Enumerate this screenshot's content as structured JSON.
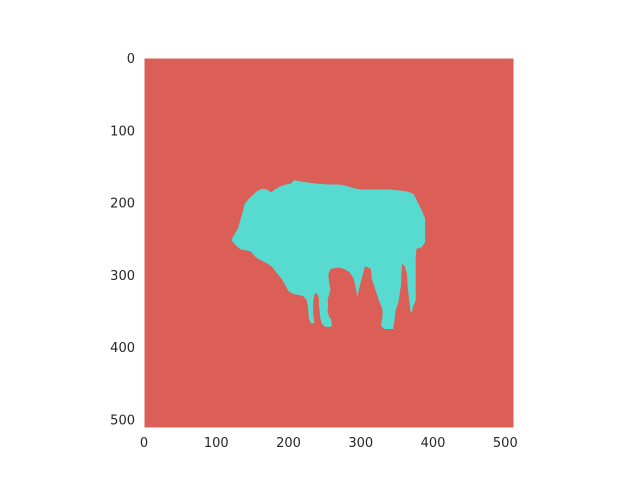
{
  "chart_data": {
    "type": "heatmap",
    "title": "",
    "xlabel": "",
    "ylabel": "",
    "image_size": [
      512,
      512
    ],
    "xlim": [
      0,
      512
    ],
    "ylim": [
      512,
      0
    ],
    "x_ticks": [
      0,
      100,
      200,
      300,
      400,
      500
    ],
    "y_ticks": [
      0,
      100,
      200,
      300,
      400,
      500
    ],
    "x_tick_labels": [
      "0",
      "100",
      "200",
      "300",
      "400",
      "500"
    ],
    "y_tick_labels": [
      "0",
      "100",
      "200",
      "300",
      "400",
      "500"
    ],
    "grid": false,
    "classes": [
      {
        "value": 0,
        "color": "#db5f57"
      },
      {
        "value": 1,
        "color": "#57dbd0"
      }
    ],
    "mask_region_class": 1,
    "mask_polygon": [
      [
        121,
        252
      ],
      [
        125,
        244
      ],
      [
        130,
        236
      ],
      [
        134,
        222
      ],
      [
        137,
        212
      ],
      [
        139,
        202
      ],
      [
        144,
        196
      ],
      [
        150,
        190
      ],
      [
        157,
        184
      ],
      [
        163,
        181
      ],
      [
        170,
        182
      ],
      [
        176,
        186
      ],
      [
        181,
        182
      ],
      [
        188,
        178
      ],
      [
        196,
        175
      ],
      [
        203,
        174
      ],
      [
        208,
        169
      ],
      [
        213,
        170
      ],
      [
        218,
        171
      ],
      [
        224,
        172
      ],
      [
        240,
        174
      ],
      [
        255,
        175
      ],
      [
        270,
        175
      ],
      [
        280,
        177
      ],
      [
        290,
        180
      ],
      [
        300,
        182
      ],
      [
        320,
        182
      ],
      [
        340,
        182
      ],
      [
        350,
        183
      ],
      [
        360,
        184
      ],
      [
        365,
        185
      ],
      [
        373,
        188
      ],
      [
        378,
        198
      ],
      [
        384,
        210
      ],
      [
        389,
        222
      ],
      [
        389,
        240
      ],
      [
        389,
        255
      ],
      [
        384,
        262
      ],
      [
        377,
        264
      ],
      [
        376,
        275
      ],
      [
        376,
        290
      ],
      [
        376,
        305
      ],
      [
        376,
        320
      ],
      [
        376,
        335
      ],
      [
        372,
        345
      ],
      [
        371,
        351
      ],
      [
        369,
        352
      ],
      [
        367,
        335
      ],
      [
        365,
        318
      ],
      [
        364,
        300
      ],
      [
        361,
        288
      ],
      [
        357,
        285
      ],
      [
        356,
        300
      ],
      [
        356,
        312
      ],
      [
        352,
        338
      ],
      [
        348,
        350
      ],
      [
        347,
        360
      ],
      [
        345,
        375
      ],
      [
        341,
        375
      ],
      [
        332,
        375
      ],
      [
        328,
        370
      ],
      [
        330,
        358
      ],
      [
        330,
        348
      ],
      [
        325,
        335
      ],
      [
        320,
        320
      ],
      [
        315,
        305
      ],
      [
        314,
        292
      ],
      [
        306,
        288
      ],
      [
        302,
        302
      ],
      [
        298,
        318
      ],
      [
        295,
        330
      ],
      [
        293,
        318
      ],
      [
        290,
        305
      ],
      [
        284,
        296
      ],
      [
        277,
        292
      ],
      [
        270,
        290
      ],
      [
        263,
        291
      ],
      [
        258,
        292
      ],
      [
        255,
        300
      ],
      [
        256,
        310
      ],
      [
        258,
        320
      ],
      [
        256,
        328
      ],
      [
        254,
        335
      ],
      [
        255,
        342
      ],
      [
        254,
        350
      ],
      [
        256,
        358
      ],
      [
        259,
        362
      ],
      [
        260,
        370
      ],
      [
        258,
        372
      ],
      [
        251,
        372
      ],
      [
        246,
        368
      ],
      [
        244,
        360
      ],
      [
        243,
        350
      ],
      [
        242,
        340
      ],
      [
        242,
        332
      ],
      [
        239,
        325
      ],
      [
        236,
        327
      ],
      [
        234,
        338
      ],
      [
        234,
        352
      ],
      [
        235,
        362
      ],
      [
        236,
        367
      ],
      [
        231,
        367
      ],
      [
        228,
        360
      ],
      [
        227,
        345
      ],
      [
        225,
        335
      ],
      [
        221,
        330
      ],
      [
        215,
        328
      ],
      [
        208,
        327
      ],
      [
        200,
        323
      ],
      [
        197,
        317
      ],
      [
        193,
        310
      ],
      [
        190,
        305
      ],
      [
        185,
        299
      ],
      [
        177,
        289
      ],
      [
        170,
        284
      ],
      [
        164,
        281
      ],
      [
        158,
        278
      ],
      [
        153,
        274
      ],
      [
        148,
        268
      ],
      [
        141,
        266
      ],
      [
        134,
        265
      ],
      [
        130,
        262
      ],
      [
        126,
        258
      ]
    ]
  }
}
